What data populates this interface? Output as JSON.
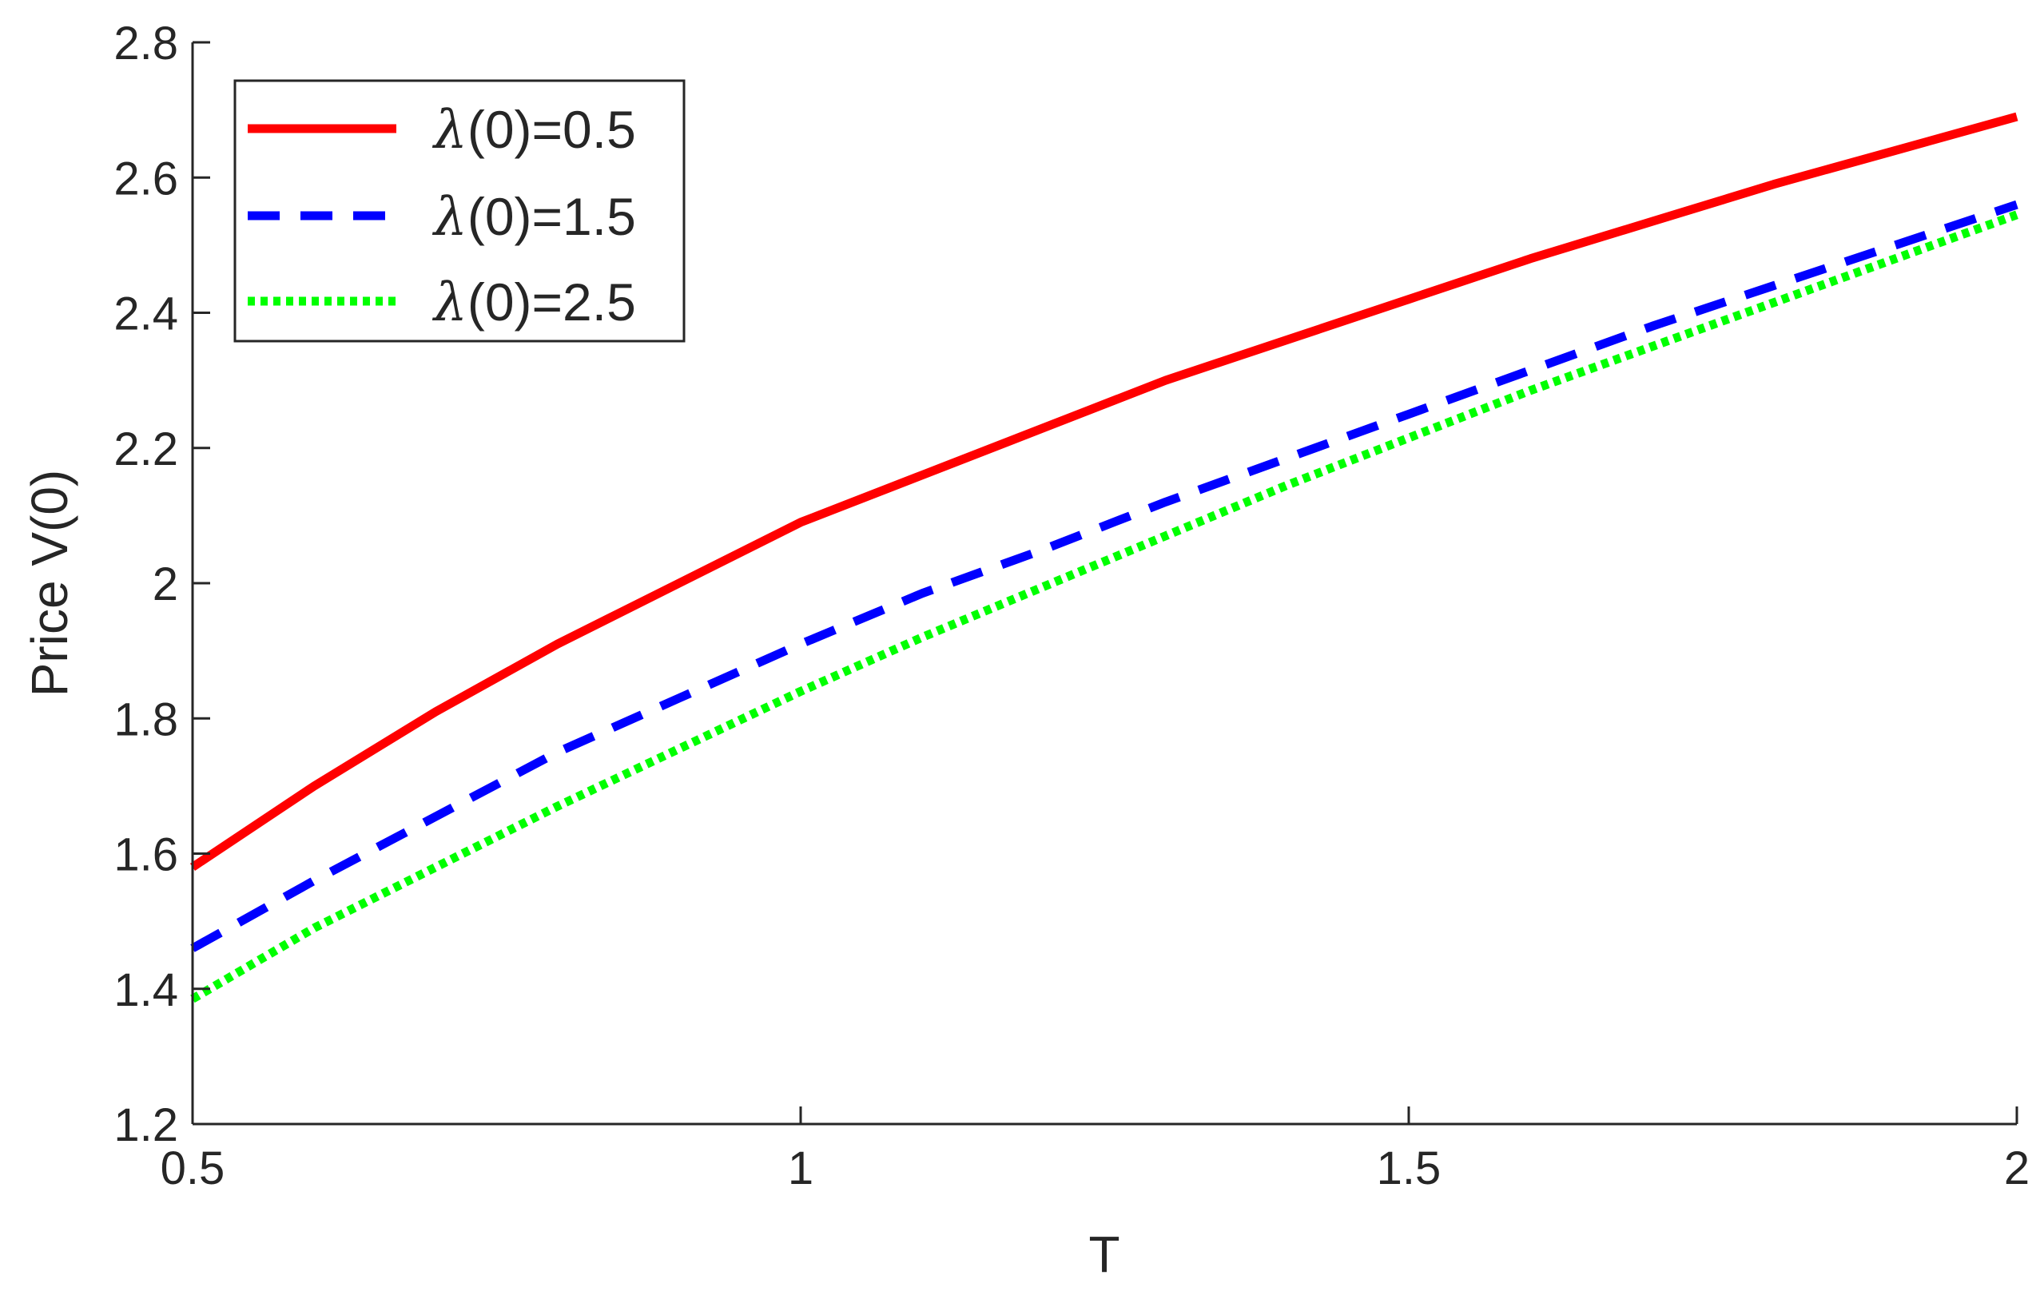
{
  "chart_data": {
    "type": "line",
    "xlabel": "T",
    "ylabel": "Price V(0)",
    "xlim": [
      0.5,
      2
    ],
    "ylim": [
      1.2,
      2.8
    ],
    "xticks": [
      0.5,
      1,
      1.5,
      2
    ],
    "xtick_labels": [
      "0.5",
      "1",
      "1.5",
      "2"
    ],
    "yticks": [
      1.2,
      1.4,
      1.6,
      1.8,
      2.0,
      2.2,
      2.4,
      2.6,
      2.8
    ],
    "ytick_labels": [
      "1.2",
      "1.4",
      "1.6",
      "1.8",
      "2",
      "2.2",
      "2.4",
      "2.6",
      "2.8"
    ],
    "grid": false,
    "legend_position": "top-left",
    "x": [
      0.5,
      0.6,
      0.7,
      0.8,
      0.9,
      1.0,
      1.1,
      1.2,
      1.3,
      1.4,
      1.5,
      1.6,
      1.7,
      1.8,
      1.9,
      2.0
    ],
    "series": [
      {
        "name": "λ(0)=0.5",
        "name_symbol": "λ",
        "name_rest": "(0)=0.5",
        "color": "#ff0000",
        "style": "solid",
        "values": [
          1.58,
          1.7,
          1.81,
          1.91,
          2.0,
          2.09,
          2.16,
          2.23,
          2.3,
          2.36,
          2.42,
          2.48,
          2.535,
          2.59,
          2.64,
          2.69
        ]
      },
      {
        "name": "λ(0)=1.5",
        "name_symbol": "λ",
        "name_rest": "(0)=1.5",
        "color": "#0000ff",
        "style": "dashed",
        "values": [
          1.46,
          1.56,
          1.655,
          1.75,
          1.83,
          1.91,
          1.985,
          2.05,
          2.12,
          2.185,
          2.25,
          2.315,
          2.38,
          2.44,
          2.5,
          2.56
        ]
      },
      {
        "name": "λ(0)=2.5",
        "name_symbol": "λ",
        "name_rest": "(0)=2.5",
        "color": "#00ff00",
        "style": "dotted",
        "values": [
          1.385,
          1.49,
          1.58,
          1.67,
          1.755,
          1.84,
          1.92,
          1.995,
          2.07,
          2.145,
          2.215,
          2.285,
          2.35,
          2.415,
          2.48,
          2.545
        ]
      }
    ]
  }
}
